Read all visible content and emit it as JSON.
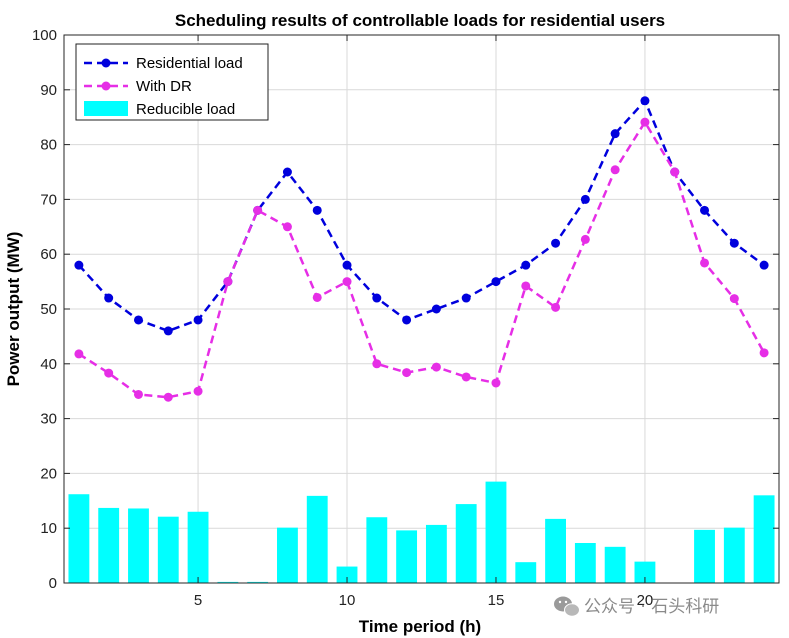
{
  "chart_data": {
    "type": "line",
    "title": "Scheduling results of controllable loads for residential users",
    "xlabel": "Time period (h)",
    "ylabel": "Power output (MW)",
    "xlim": [
      0.5,
      24.5
    ],
    "ylim": [
      0,
      100
    ],
    "grid": true,
    "legend_position": "top-left",
    "x": [
      1,
      2,
      3,
      4,
      5,
      6,
      7,
      8,
      9,
      10,
      11,
      12,
      13,
      14,
      15,
      16,
      17,
      18,
      19,
      20,
      21,
      22,
      23,
      24
    ],
    "xticks": [
      5,
      10,
      15,
      20
    ],
    "yticks": [
      0,
      10,
      20,
      30,
      40,
      50,
      60,
      70,
      80,
      90,
      100
    ],
    "series": [
      {
        "name": "Residential load",
        "style": "dashed-line-dots",
        "color": "#0000DD",
        "values": [
          58,
          52,
          48,
          46,
          48,
          55,
          68,
          75,
          68,
          58,
          52,
          48,
          50,
          52,
          55,
          58,
          62,
          70,
          82,
          88,
          75,
          68,
          62,
          58
        ]
      },
      {
        "name": "With DR",
        "style": "dashed-line-dots",
        "color": "#E62EE6",
        "values": [
          41.8,
          38.3,
          34.4,
          33.9,
          35.0,
          55,
          68,
          65,
          52.1,
          55,
          40,
          38.4,
          39.4,
          37.6,
          36.5,
          54.2,
          50.3,
          62.7,
          75.4,
          84.1,
          75,
          58.4,
          51.9,
          42
        ]
      },
      {
        "name": "Reducible load",
        "style": "bar",
        "color": "#00FFFF",
        "values": [
          16.2,
          13.7,
          13.6,
          12.1,
          13.0,
          0.2,
          0.2,
          10.1,
          15.9,
          3.0,
          12.0,
          9.6,
          10.6,
          14.4,
          18.5,
          3.8,
          11.7,
          7.3,
          6.6,
          3.9,
          0,
          9.7,
          10.1,
          16.0
        ]
      }
    ]
  },
  "watermark": {
    "text": "公众号 · 石头科研"
  }
}
